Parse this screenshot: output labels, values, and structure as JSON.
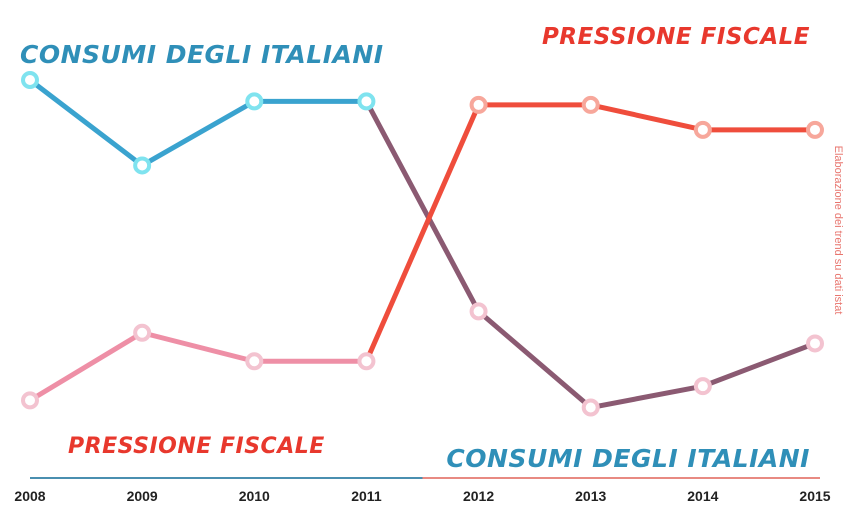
{
  "chart_data": {
    "type": "line",
    "x": [
      "2008",
      "2009",
      "2010",
      "2011",
      "2012",
      "2013",
      "2014",
      "2015"
    ],
    "ylim": [
      0,
      100
    ],
    "grid": false,
    "series": [
      {
        "name": "CONSUMI DEGLI ITALIANI",
        "values": [
          100,
          76,
          94,
          94,
          35,
          8,
          14,
          26
        ],
        "color": "#3aa3cf",
        "color_late": "#8b5a72",
        "marker_early": "#7fe3ef",
        "marker_late": "#f3c3d0"
      },
      {
        "name": "PRESSIONE FISCALE",
        "values": [
          10,
          29,
          21,
          21,
          93,
          93,
          86,
          86
        ],
        "color": "#ee8fa6",
        "color_late": "#ef4d3c",
        "marker_early": "#f3c3d0",
        "marker_late": "#f7a79b"
      }
    ]
  },
  "labels": {
    "consumi_top": "CONSUMI DEGLI ITALIANI",
    "pressione_top": "PRESSIONE FISCALE",
    "pressione_bottom": "PRESSIONE FISCALE",
    "consumi_bottom": "CONSUMI DEGLI ITALIANI"
  },
  "source_note": "Elaborazione dei trend su dati istat",
  "axis_colors": {
    "left": "#4a8fb0",
    "right": "#e88a82"
  }
}
